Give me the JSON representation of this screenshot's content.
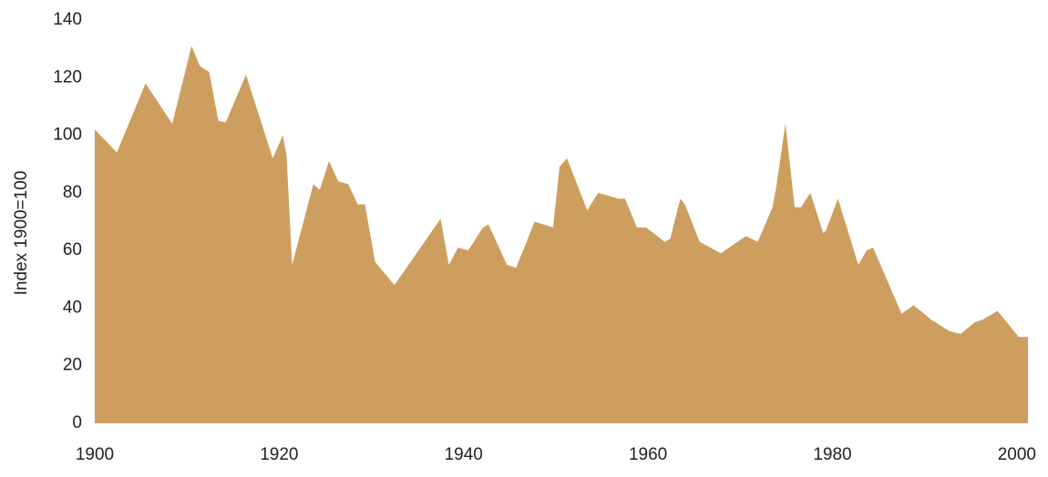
{
  "chart_data": {
    "type": "area",
    "ylabel": "Index 1900=100",
    "color": "#cd9e5e",
    "x": [
      1900.0,
      1902.4,
      1905.5,
      1908.4,
      1910.5,
      1911.4,
      1912.4,
      1913.4,
      1914.2,
      1916.4,
      1919.3,
      1920.4,
      1920.8,
      1921.4,
      1923.7,
      1924.4,
      1925.4,
      1926.4,
      1927.5,
      1928.5,
      1929.3,
      1930.4,
      1932.5,
      1937.5,
      1938.4,
      1939.4,
      1940.5,
      1942.1,
      1942.7,
      1944.7,
      1945.7,
      1947.7,
      1949.7,
      1950.4,
      1951.2,
      1953.4,
      1954.6,
      1956.8,
      1957.5,
      1958.8,
      1959.8,
      1961.8,
      1962.4,
      1963.5,
      1964.0,
      1965.6,
      1967.9,
      1970.6,
      1971.9,
      1973.5,
      1973.9,
      1974.9,
      1975.9,
      1976.6,
      1977.6,
      1979.0,
      1979.3,
      1980.6,
      1982.8,
      1983.7,
      1984.4,
      1987.5,
      1988.8,
      1990.7,
      1992.7,
      1993.9,
      1995.4,
      1996.3,
      1997.9,
      2000.2,
      2001.2
    ],
    "values": [
      102,
      94,
      118,
      104,
      131,
      124,
      122,
      105,
      104.5,
      121,
      92,
      100,
      93,
      55,
      83,
      81,
      91,
      84,
      83,
      76,
      76,
      56,
      48,
      71,
      55,
      61,
      60,
      68,
      69,
      55,
      54,
      70,
      68,
      89,
      92,
      74,
      80,
      78,
      78,
      68,
      68,
      63,
      64,
      78,
      76,
      63,
      59,
      65,
      63,
      75,
      82,
      104,
      75,
      75,
      80,
      66,
      67,
      78,
      55,
      60,
      61,
      38,
      41,
      36,
      32,
      31,
      35,
      36,
      39,
      30,
      30
    ],
    "xlim": [
      1900,
      2001.2
    ],
    "ylim": [
      0,
      140
    ],
    "xticks": [
      1900,
      1920,
      1940,
      1960,
      1980,
      2000
    ],
    "yticks": [
      0,
      20,
      40,
      60,
      80,
      100,
      120,
      140
    ],
    "grid": false
  }
}
